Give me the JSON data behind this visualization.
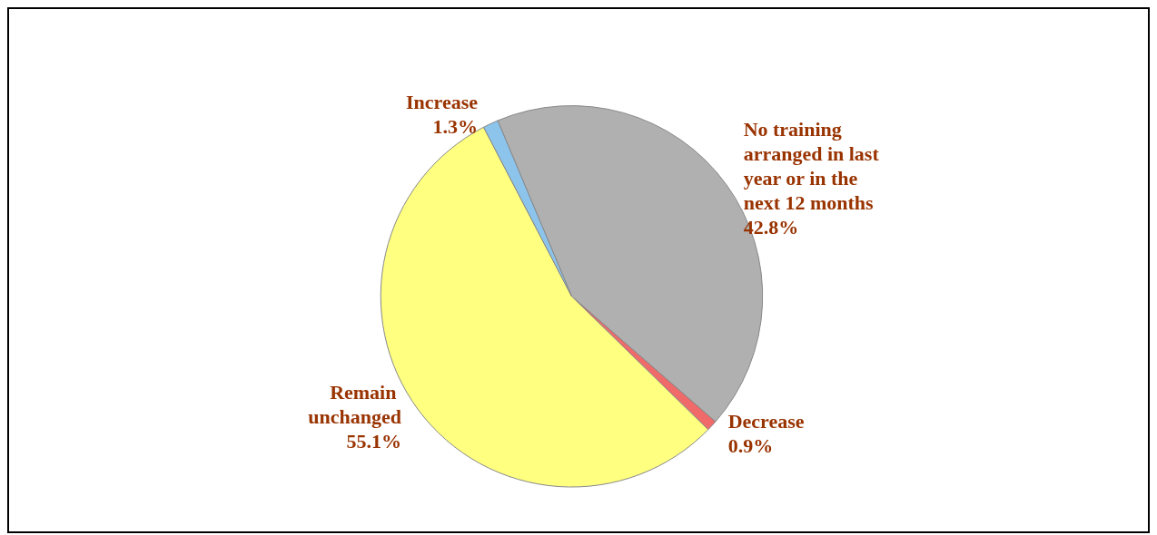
{
  "chart_data": {
    "type": "pie",
    "categories": [
      "No training arranged in last year or in the next 12 months",
      "Decrease",
      "Remain unchanged",
      "Increase"
    ],
    "values": [
      42.8,
      0.9,
      55.1,
      1.3
    ],
    "colors": [
      "#b0b0b0",
      "#f06a6a",
      "#ffff80",
      "#8cc4ec"
    ],
    "value_labels": [
      "42.8%",
      "0.9%",
      "55.1%",
      "1.3%"
    ],
    "legend": false
  }
}
